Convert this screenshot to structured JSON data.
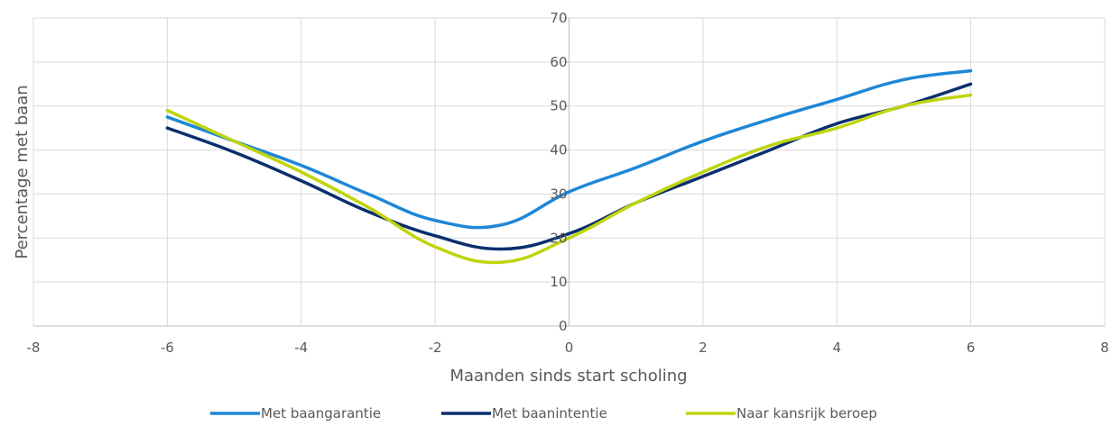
{
  "chart_data": {
    "type": "line",
    "title": "",
    "xlabel": "Maanden sinds start scholing",
    "ylabel": "Percentage met baan",
    "xlim": [
      -8,
      8
    ],
    "ylim": [
      0,
      70
    ],
    "x_ticks": [
      "-8",
      "-6",
      "-4",
      "-2",
      "0",
      "2",
      "4",
      "6",
      "8"
    ],
    "y_ticks": [
      "0",
      "10",
      "20",
      "30",
      "40",
      "50",
      "60",
      "70"
    ],
    "grid": true,
    "legend_position": "bottom",
    "x": [
      -6,
      -5,
      -4,
      -3,
      -2,
      -1,
      0,
      1,
      2,
      3,
      4,
      5,
      6
    ],
    "series": [
      {
        "name": "Met baangarantie",
        "color": "#1f87d6",
        "values": [
          47.5,
          42,
          36.5,
          30,
          24,
          23,
          30.5,
          36,
          42,
          47,
          51.5,
          56,
          58
        ]
      },
      {
        "name": "Met baanintentie",
        "color": "#0a2f6e",
        "values": [
          45,
          39.5,
          33,
          26,
          20.5,
          17.5,
          21,
          28,
          34,
          40,
          46,
          50,
          55
        ]
      },
      {
        "name": "Naar kansrijk beroep",
        "color": "#bfd40d",
        "values": [
          49,
          42,
          35,
          27,
          18,
          14.5,
          20,
          28,
          35,
          41,
          45,
          50,
          52.5
        ]
      }
    ]
  }
}
